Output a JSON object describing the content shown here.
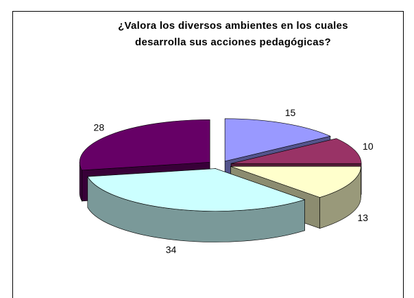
{
  "chart_data": {
    "type": "pie3d",
    "title": [
      "¿Valora los diversos ambientes en los cuales",
      "desarrolla sus acciones pedagógicas?"
    ],
    "values": [
      15,
      10,
      13,
      34,
      28
    ],
    "colors": [
      "#9999ff",
      "#993366",
      "#ffffcc",
      "#ccffff",
      "#660066"
    ]
  }
}
